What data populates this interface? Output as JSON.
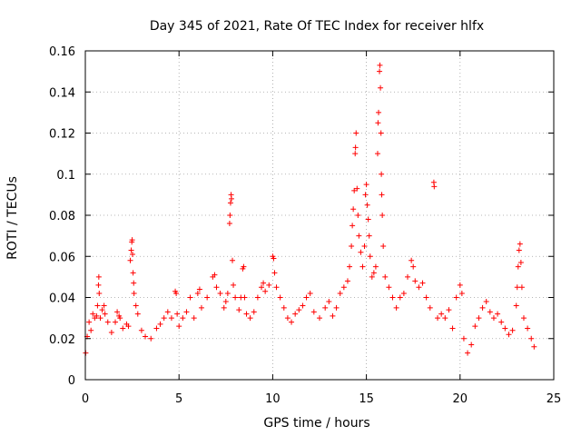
{
  "chart_data": {
    "type": "scatter",
    "title": "Day 345 of 2021, Rate Of TEC Index for receiver hlfx",
    "xlabel": "GPS time / hours",
    "ylabel": "ROTI / TECUs",
    "xlim": [
      0,
      25
    ],
    "ylim": [
      0,
      0.16
    ],
    "x_ticks": [
      0,
      5,
      10,
      15,
      20,
      25
    ],
    "x_tick_labels": [
      "0",
      "5",
      "10",
      "15",
      "20",
      "25"
    ],
    "y_ticks": [
      0,
      0.02,
      0.04,
      0.06,
      0.08,
      0.1,
      0.12,
      0.14,
      0.16
    ],
    "y_tick_labels": [
      "0",
      "0.02",
      "0.04",
      "0.06",
      "0.08",
      "0.1",
      "0.12",
      "0.14",
      "0.16"
    ],
    "grid": true,
    "marker": "+",
    "marker_color": "#ff0000",
    "series": [
      {
        "name": "ROTI",
        "points": [
          [
            0.02,
            0.013
          ],
          [
            0.1,
            0.021
          ],
          [
            0.2,
            0.028
          ],
          [
            0.3,
            0.024
          ],
          [
            0.4,
            0.032
          ],
          [
            0.5,
            0.03
          ],
          [
            0.6,
            0.031
          ],
          [
            0.65,
            0.036
          ],
          [
            0.7,
            0.046
          ],
          [
            0.72,
            0.05
          ],
          [
            0.74,
            0.042
          ],
          [
            0.8,
            0.03
          ],
          [
            0.9,
            0.034
          ],
          [
            1.0,
            0.036
          ],
          [
            1.05,
            0.032
          ],
          [
            1.2,
            0.028
          ],
          [
            1.4,
            0.023
          ],
          [
            1.6,
            0.028
          ],
          [
            1.7,
            0.033
          ],
          [
            1.8,
            0.031
          ],
          [
            1.85,
            0.03
          ],
          [
            2.0,
            0.025
          ],
          [
            2.2,
            0.027
          ],
          [
            2.3,
            0.026
          ],
          [
            2.4,
            0.058
          ],
          [
            2.45,
            0.063
          ],
          [
            2.48,
            0.067
          ],
          [
            2.5,
            0.068
          ],
          [
            2.52,
            0.061
          ],
          [
            2.55,
            0.052
          ],
          [
            2.58,
            0.047
          ],
          [
            2.6,
            0.042
          ],
          [
            2.7,
            0.036
          ],
          [
            2.8,
            0.032
          ],
          [
            3.0,
            0.024
          ],
          [
            3.2,
            0.021
          ],
          [
            3.5,
            0.02
          ],
          [
            3.8,
            0.025
          ],
          [
            4.0,
            0.027
          ],
          [
            4.2,
            0.03
          ],
          [
            4.4,
            0.033
          ],
          [
            4.6,
            0.03
          ],
          [
            4.8,
            0.043
          ],
          [
            4.85,
            0.042
          ],
          [
            4.9,
            0.032
          ],
          [
            5.0,
            0.026
          ],
          [
            5.2,
            0.03
          ],
          [
            5.4,
            0.033
          ],
          [
            5.6,
            0.04
          ],
          [
            5.8,
            0.03
          ],
          [
            6.0,
            0.042
          ],
          [
            6.1,
            0.044
          ],
          [
            6.2,
            0.035
          ],
          [
            6.5,
            0.04
          ],
          [
            6.8,
            0.05
          ],
          [
            6.9,
            0.051
          ],
          [
            7.0,
            0.045
          ],
          [
            7.2,
            0.042
          ],
          [
            7.4,
            0.035
          ],
          [
            7.5,
            0.038
          ],
          [
            7.6,
            0.042
          ],
          [
            7.7,
            0.076
          ],
          [
            7.72,
            0.08
          ],
          [
            7.75,
            0.086
          ],
          [
            7.78,
            0.09
          ],
          [
            7.8,
            0.088
          ],
          [
            7.85,
            0.058
          ],
          [
            7.9,
            0.046
          ],
          [
            8.0,
            0.04
          ],
          [
            8.2,
            0.034
          ],
          [
            8.3,
            0.04
          ],
          [
            8.4,
            0.054
          ],
          [
            8.45,
            0.055
          ],
          [
            8.5,
            0.04
          ],
          [
            8.6,
            0.032
          ],
          [
            8.8,
            0.03
          ],
          [
            9.0,
            0.033
          ],
          [
            9.2,
            0.04
          ],
          [
            9.4,
            0.045
          ],
          [
            9.5,
            0.047
          ],
          [
            9.6,
            0.043
          ],
          [
            9.8,
            0.046
          ],
          [
            10.0,
            0.06
          ],
          [
            10.05,
            0.059
          ],
          [
            10.1,
            0.052
          ],
          [
            10.2,
            0.045
          ],
          [
            10.4,
            0.04
          ],
          [
            10.6,
            0.035
          ],
          [
            10.8,
            0.03
          ],
          [
            11.0,
            0.028
          ],
          [
            11.2,
            0.032
          ],
          [
            11.4,
            0.034
          ],
          [
            11.6,
            0.036
          ],
          [
            11.8,
            0.04
          ],
          [
            12.0,
            0.042
          ],
          [
            12.2,
            0.033
          ],
          [
            12.5,
            0.03
          ],
          [
            12.8,
            0.035
          ],
          [
            13.0,
            0.038
          ],
          [
            13.2,
            0.031
          ],
          [
            13.4,
            0.035
          ],
          [
            13.6,
            0.042
          ],
          [
            13.8,
            0.045
          ],
          [
            14.0,
            0.048
          ],
          [
            14.1,
            0.055
          ],
          [
            14.2,
            0.065
          ],
          [
            14.25,
            0.075
          ],
          [
            14.3,
            0.083
          ],
          [
            14.35,
            0.092
          ],
          [
            14.4,
            0.11
          ],
          [
            14.42,
            0.113
          ],
          [
            14.45,
            0.12
          ],
          [
            14.5,
            0.093
          ],
          [
            14.55,
            0.08
          ],
          [
            14.6,
            0.07
          ],
          [
            14.7,
            0.062
          ],
          [
            14.8,
            0.055
          ],
          [
            14.9,
            0.065
          ],
          [
            14.95,
            0.09
          ],
          [
            15.0,
            0.095
          ],
          [
            15.05,
            0.085
          ],
          [
            15.1,
            0.078
          ],
          [
            15.15,
            0.07
          ],
          [
            15.2,
            0.06
          ],
          [
            15.3,
            0.05
          ],
          [
            15.4,
            0.052
          ],
          [
            15.5,
            0.055
          ],
          [
            15.6,
            0.11
          ],
          [
            15.62,
            0.125
          ],
          [
            15.65,
            0.13
          ],
          [
            15.7,
            0.15
          ],
          [
            15.72,
            0.153
          ],
          [
            15.75,
            0.142
          ],
          [
            15.78,
            0.12
          ],
          [
            15.8,
            0.1
          ],
          [
            15.82,
            0.09
          ],
          [
            15.85,
            0.08
          ],
          [
            15.9,
            0.065
          ],
          [
            16.0,
            0.05
          ],
          [
            16.2,
            0.045
          ],
          [
            16.4,
            0.04
          ],
          [
            16.6,
            0.035
          ],
          [
            16.8,
            0.04
          ],
          [
            17.0,
            0.042
          ],
          [
            17.2,
            0.05
          ],
          [
            17.4,
            0.058
          ],
          [
            17.5,
            0.055
          ],
          [
            17.6,
            0.048
          ],
          [
            17.8,
            0.045
          ],
          [
            18.0,
            0.047
          ],
          [
            18.2,
            0.04
          ],
          [
            18.4,
            0.035
          ],
          [
            18.6,
            0.096
          ],
          [
            18.62,
            0.094
          ],
          [
            18.8,
            0.03
          ],
          [
            19.0,
            0.032
          ],
          [
            19.2,
            0.03
          ],
          [
            19.4,
            0.034
          ],
          [
            19.6,
            0.025
          ],
          [
            19.8,
            0.04
          ],
          [
            20.0,
            0.046
          ],
          [
            20.1,
            0.042
          ],
          [
            20.2,
            0.02
          ],
          [
            20.4,
            0.013
          ],
          [
            20.6,
            0.017
          ],
          [
            20.8,
            0.026
          ],
          [
            21.0,
            0.03
          ],
          [
            21.2,
            0.035
          ],
          [
            21.4,
            0.038
          ],
          [
            21.6,
            0.033
          ],
          [
            21.8,
            0.03
          ],
          [
            22.0,
            0.032
          ],
          [
            22.2,
            0.028
          ],
          [
            22.4,
            0.025
          ],
          [
            22.6,
            0.022
          ],
          [
            22.8,
            0.024
          ],
          [
            23.0,
            0.036
          ],
          [
            23.05,
            0.045
          ],
          [
            23.1,
            0.055
          ],
          [
            23.15,
            0.063
          ],
          [
            23.2,
            0.066
          ],
          [
            23.25,
            0.057
          ],
          [
            23.3,
            0.045
          ],
          [
            23.4,
            0.03
          ],
          [
            23.6,
            0.025
          ],
          [
            23.8,
            0.02
          ],
          [
            23.95,
            0.016
          ]
        ]
      }
    ]
  }
}
